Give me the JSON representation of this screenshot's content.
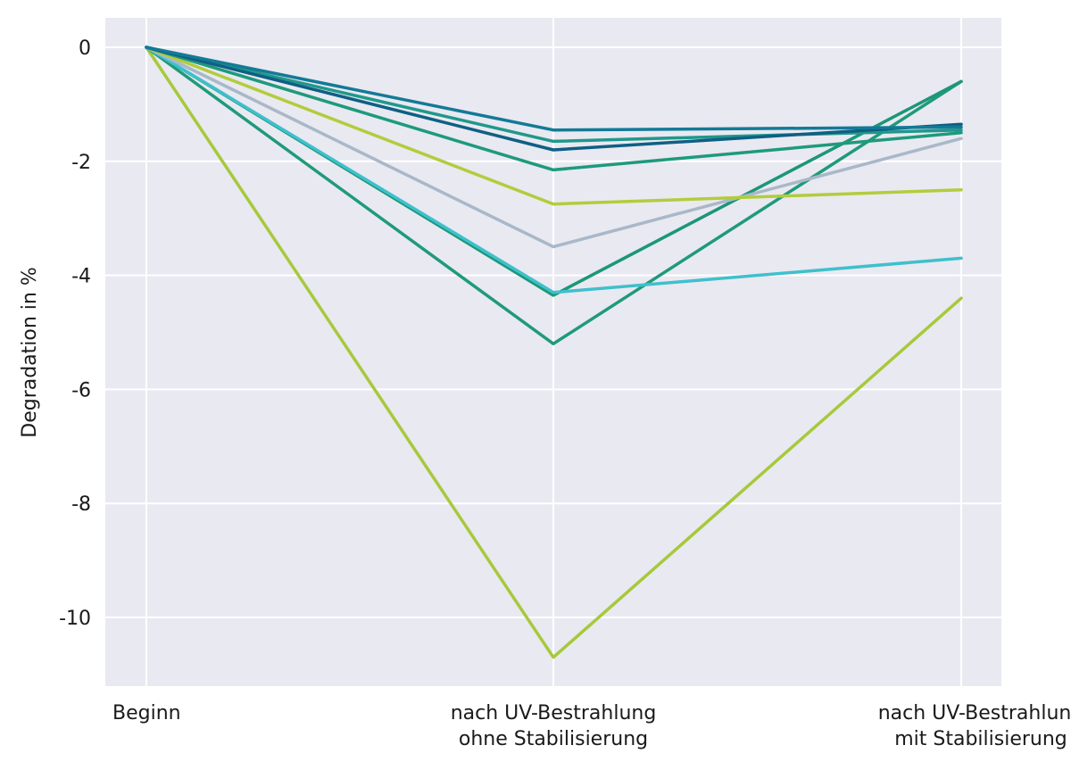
{
  "chart_data": {
    "type": "line",
    "title": "",
    "xlabel": "",
    "ylabel": "Degradation in %",
    "categories": [
      [
        "Beginn"
      ],
      [
        "nach UV-Bestrahlung",
        "ohne Stabilisierung"
      ],
      [
        "nach UV-Bestrahlung",
        "mit Stabilisierung"
      ]
    ],
    "ylim": [
      -11.25,
      0.5
    ],
    "yticks": [
      0,
      -2,
      -4,
      -6,
      -8,
      -10
    ],
    "ytick_labels": [
      "0",
      "-2",
      "-4",
      "-6",
      "-8",
      "-10"
    ],
    "grid": true,
    "legend": "none",
    "series": [
      {
        "color": "#a7c93a",
        "values": [
          0,
          -10.7,
          -4.4
        ]
      },
      {
        "color": "#1f9a7a",
        "values": [
          0,
          -5.2,
          -0.6
        ]
      },
      {
        "color": "#1b9777",
        "values": [
          0,
          -4.35,
          -0.6
        ]
      },
      {
        "color": "#3fc0cc",
        "values": [
          0,
          -4.3,
          -3.7
        ]
      },
      {
        "color": "#a9b8c8",
        "values": [
          0,
          -3.5,
          -1.6
        ]
      },
      {
        "color": "#b3cc3c",
        "values": [
          0,
          -2.75,
          -2.5
        ]
      },
      {
        "color": "#1e9a7c",
        "values": [
          0,
          -2.15,
          -1.5
        ]
      },
      {
        "color": "#20988a",
        "values": [
          0,
          -1.65,
          -1.45
        ]
      },
      {
        "color": "#0f5f84",
        "values": [
          0,
          -1.8,
          -1.35
        ]
      },
      {
        "color": "#137a96",
        "values": [
          0,
          -1.45,
          -1.4
        ]
      }
    ]
  }
}
